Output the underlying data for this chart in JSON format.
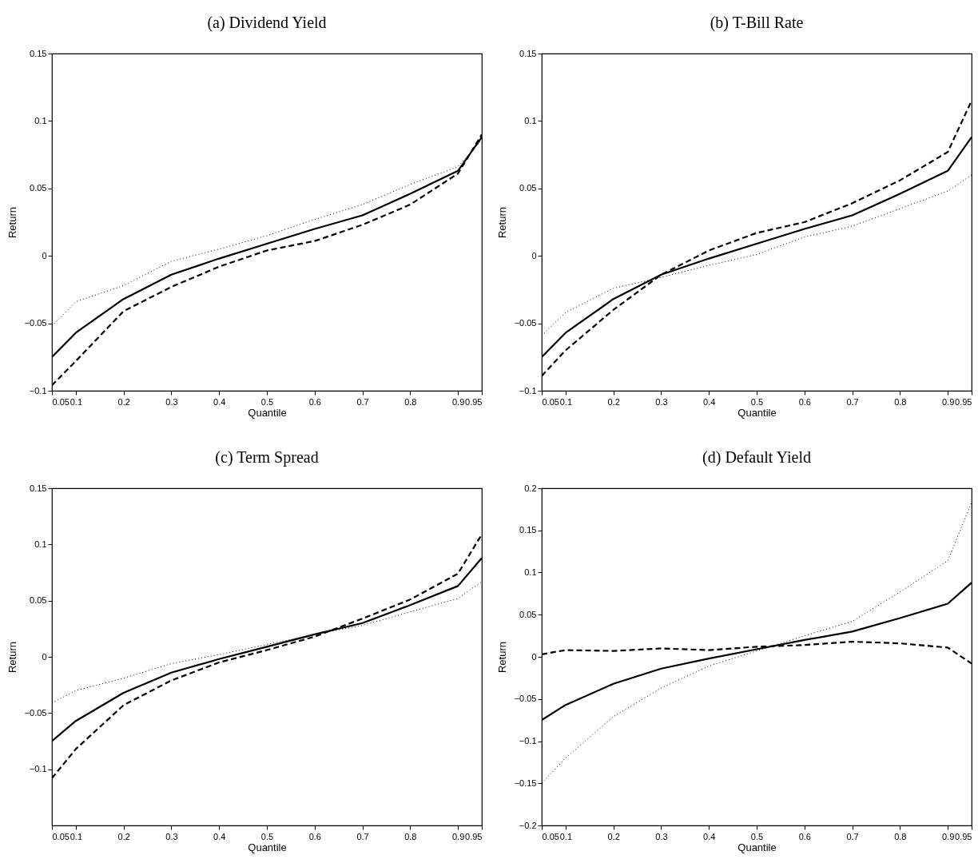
{
  "chart_data": [
    {
      "type": "line",
      "title": "(a) Dividend Yield",
      "xlabel": "Quantile",
      "ylabel": "Return",
      "x": [
        0.05,
        0.1,
        0.2,
        0.3,
        0.4,
        0.5,
        0.6,
        0.7,
        0.8,
        0.9,
        0.95
      ],
      "xlim": [
        0.05,
        0.95
      ],
      "xticks": [
        0.05,
        0.1,
        0.2,
        0.3,
        0.4,
        0.5,
        0.6,
        0.7,
        0.8,
        0.9,
        0.95
      ],
      "ylim": [
        -0.1,
        0.15
      ],
      "yticks": [
        -0.1,
        -0.05,
        0,
        0.05,
        0.1,
        0.15
      ],
      "series": [
        {
          "color": "#000000",
          "line_style": "solid",
          "values": [
            -0.075,
            -0.057,
            -0.032,
            -0.014,
            -0.002,
            0.009,
            0.02,
            0.03,
            0.046,
            0.063,
            0.088
          ]
        },
        {
          "color": "#000000",
          "line_style": "dashed",
          "values": [
            -0.096,
            -0.078,
            -0.041,
            -0.023,
            -0.008,
            0.004,
            0.011,
            0.023,
            0.038,
            0.061,
            0.09
          ]
        },
        {
          "color": "#000000",
          "line_style": "dotted",
          "values": [
            -0.052,
            -0.034,
            -0.022,
            -0.004,
            0.005,
            0.015,
            0.027,
            0.038,
            0.053,
            0.066,
            0.086
          ]
        }
      ]
    },
    {
      "type": "line",
      "title": "(b) T-Bill Rate",
      "xlabel": "Quantile",
      "ylabel": "Return",
      "x": [
        0.05,
        0.1,
        0.2,
        0.3,
        0.4,
        0.5,
        0.6,
        0.7,
        0.8,
        0.9,
        0.95
      ],
      "xlim": [
        0.05,
        0.95
      ],
      "xticks": [
        0.05,
        0.1,
        0.2,
        0.3,
        0.4,
        0.5,
        0.6,
        0.7,
        0.8,
        0.9,
        0.95
      ],
      "ylim": [
        -0.1,
        0.15
      ],
      "yticks": [
        -0.1,
        -0.05,
        0,
        0.05,
        0.1,
        0.15
      ],
      "series": [
        {
          "color": "#000000",
          "line_style": "solid",
          "values": [
            -0.075,
            -0.057,
            -0.032,
            -0.014,
            -0.002,
            0.009,
            0.02,
            0.03,
            0.046,
            0.063,
            0.088
          ]
        },
        {
          "color": "#000000",
          "line_style": "dashed",
          "values": [
            -0.089,
            -0.07,
            -0.04,
            -0.014,
            0.004,
            0.017,
            0.025,
            0.039,
            0.056,
            0.077,
            0.115
          ]
        },
        {
          "color": "#000000",
          "line_style": "dotted",
          "values": [
            -0.059,
            -0.042,
            -0.024,
            -0.016,
            -0.007,
            0.001,
            0.014,
            0.022,
            0.035,
            0.048,
            0.06
          ]
        }
      ]
    },
    {
      "type": "line",
      "title": "(c) Term Spread",
      "xlabel": "Quantile",
      "ylabel": "Return",
      "x": [
        0.05,
        0.1,
        0.2,
        0.3,
        0.4,
        0.5,
        0.6,
        0.7,
        0.8,
        0.9,
        0.95
      ],
      "xlim": [
        0.05,
        0.95
      ],
      "xticks": [
        0.05,
        0.1,
        0.2,
        0.3,
        0.4,
        0.5,
        0.6,
        0.7,
        0.8,
        0.9,
        0.95
      ],
      "ylim": [
        -0.15,
        0.15
      ],
      "yticks": [
        -0.1,
        -0.05,
        0,
        0.05,
        0.1,
        0.15
      ],
      "series": [
        {
          "color": "#000000",
          "line_style": "solid",
          "values": [
            -0.075,
            -0.057,
            -0.032,
            -0.014,
            -0.002,
            0.009,
            0.02,
            0.03,
            0.046,
            0.063,
            0.088
          ]
        },
        {
          "color": "#000000",
          "line_style": "dashed",
          "values": [
            -0.108,
            -0.082,
            -0.043,
            -0.021,
            -0.005,
            0.006,
            0.018,
            0.034,
            0.051,
            0.074,
            0.109
          ]
        },
        {
          "color": "#000000",
          "line_style": "dotted",
          "values": [
            -0.041,
            -0.03,
            -0.019,
            -0.006,
            0.002,
            0.011,
            0.02,
            0.028,
            0.04,
            0.052,
            0.067
          ]
        }
      ]
    },
    {
      "type": "line",
      "title": "(d) Default Yield",
      "xlabel": "Quantile",
      "ylabel": "Return",
      "x": [
        0.05,
        0.1,
        0.2,
        0.3,
        0.4,
        0.5,
        0.6,
        0.7,
        0.8,
        0.9,
        0.95
      ],
      "xlim": [
        0.05,
        0.95
      ],
      "xticks": [
        0.05,
        0.1,
        0.2,
        0.3,
        0.4,
        0.5,
        0.6,
        0.7,
        0.8,
        0.9,
        0.95
      ],
      "ylim": [
        -0.2,
        0.2
      ],
      "yticks": [
        -0.2,
        -0.15,
        -0.1,
        -0.05,
        0,
        0.05,
        0.1,
        0.15,
        0.2
      ],
      "series": [
        {
          "color": "#000000",
          "line_style": "solid",
          "values": [
            -0.075,
            -0.057,
            -0.032,
            -0.014,
            -0.002,
            0.009,
            0.02,
            0.03,
            0.046,
            0.063,
            0.088
          ]
        },
        {
          "color": "#000000",
          "line_style": "dashed",
          "values": [
            0.003,
            0.008,
            0.007,
            0.01,
            0.008,
            0.012,
            0.014,
            0.018,
            0.016,
            0.011,
            -0.008
          ]
        },
        {
          "color": "#000000",
          "line_style": "dotted",
          "values": [
            -0.15,
            -0.12,
            -0.071,
            -0.037,
            -0.011,
            0.007,
            0.025,
            0.042,
            0.077,
            0.114,
            0.183
          ]
        }
      ]
    }
  ]
}
